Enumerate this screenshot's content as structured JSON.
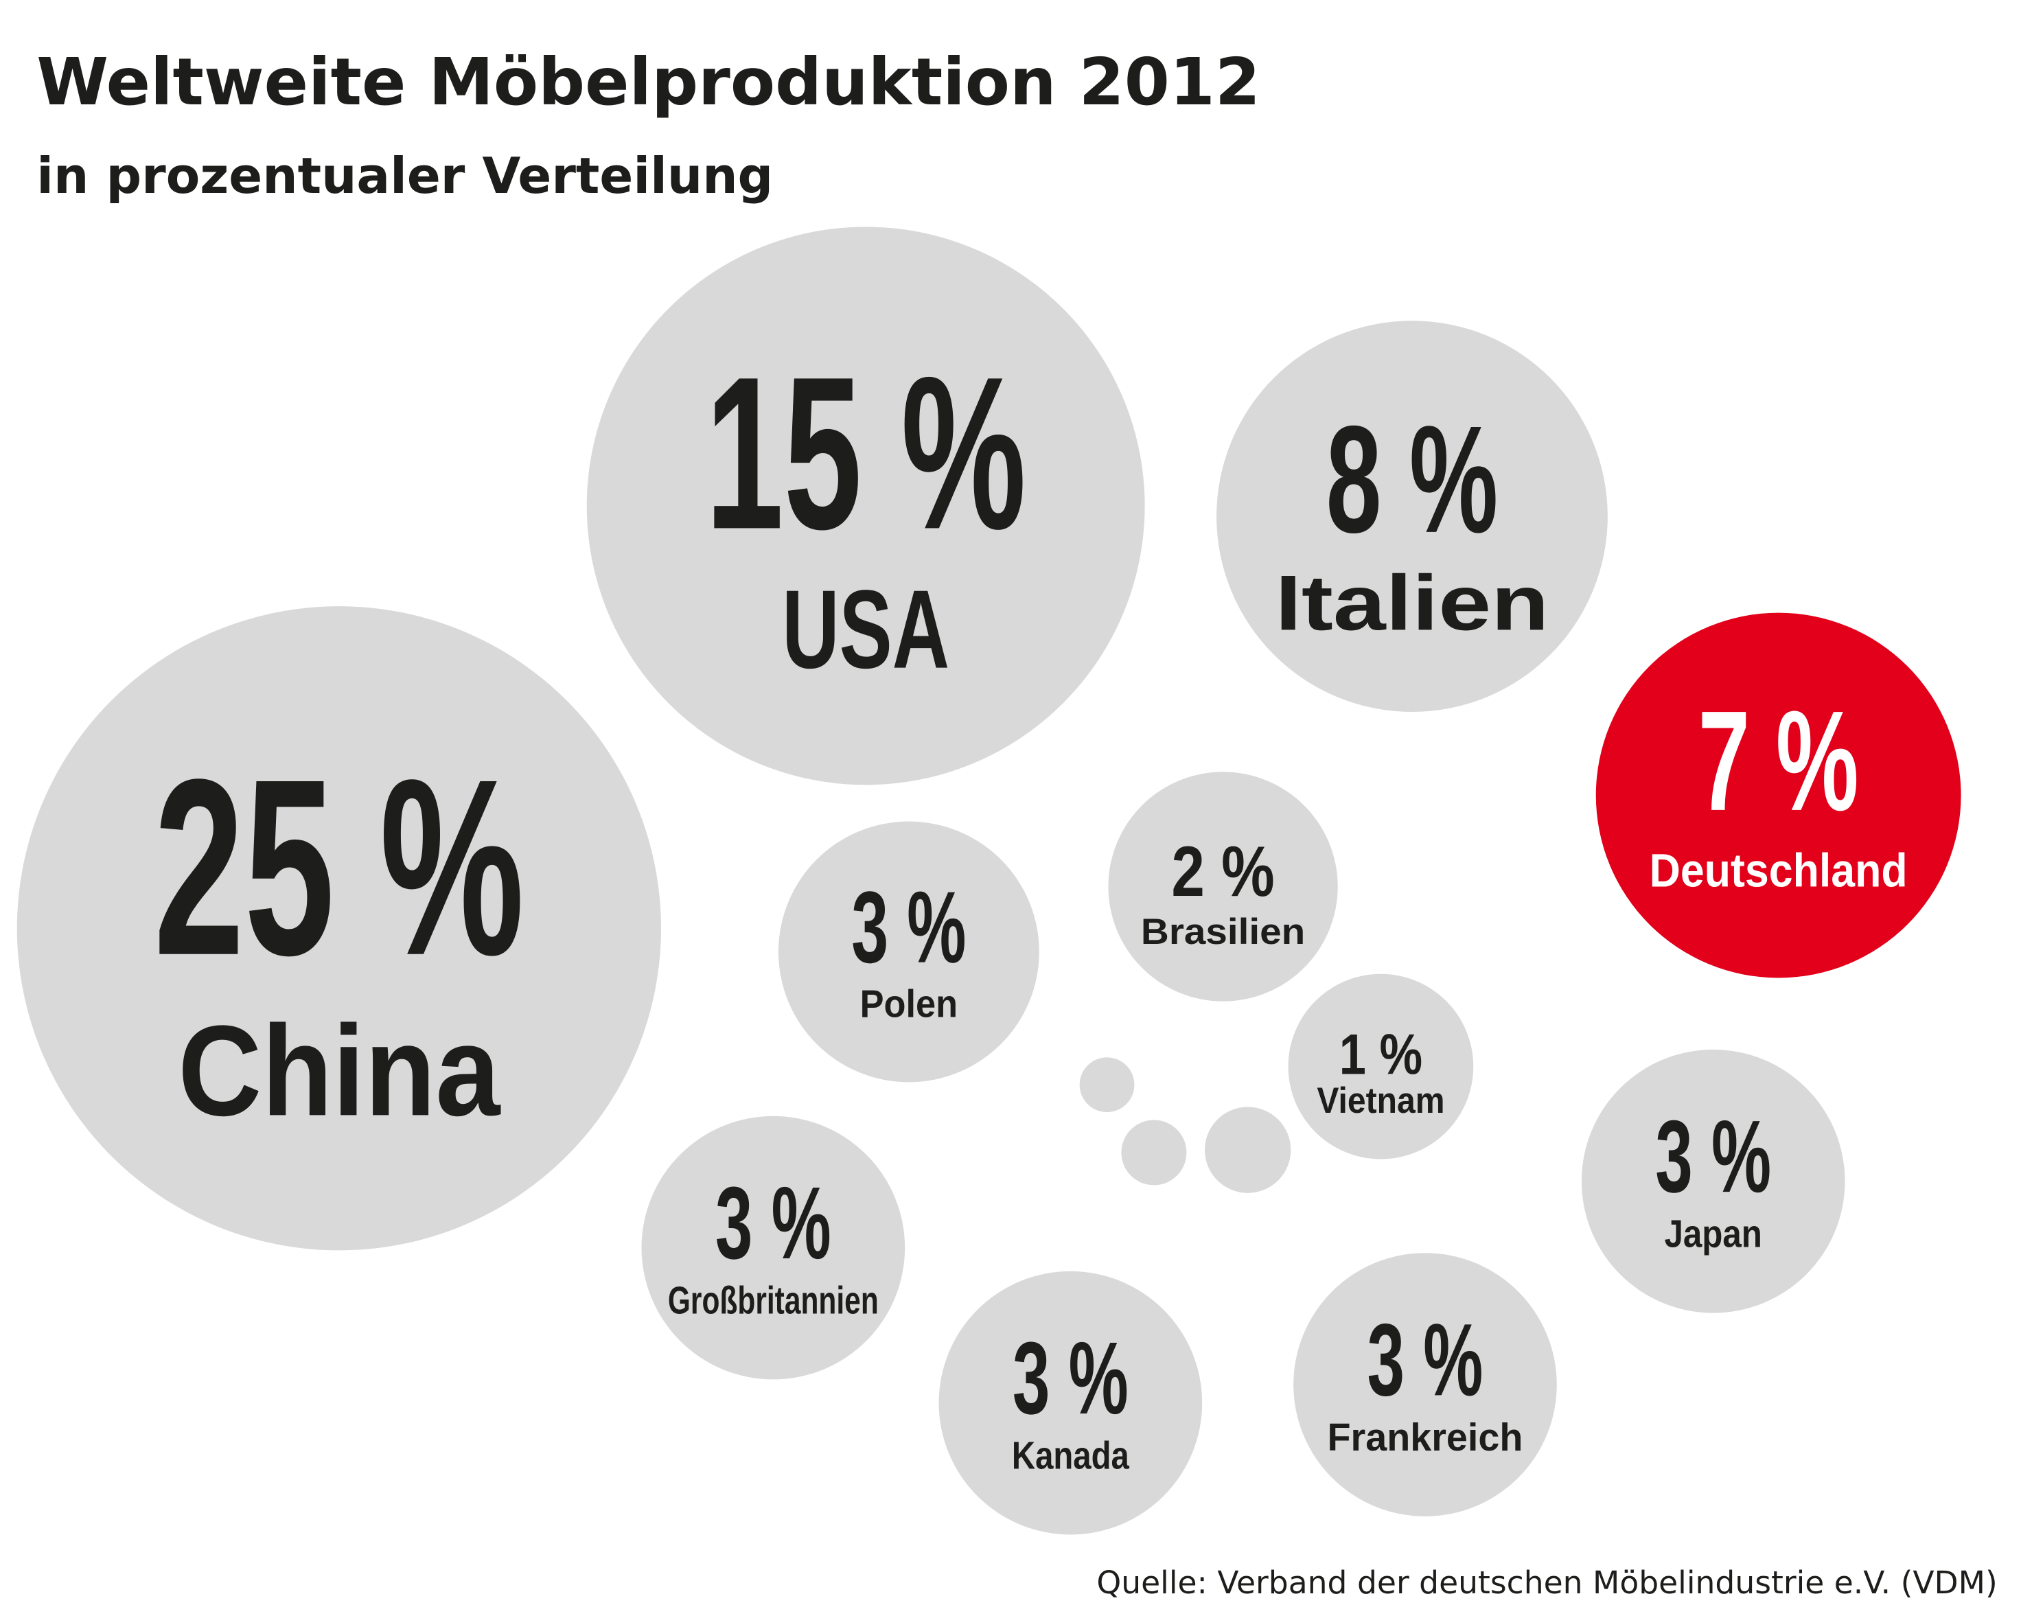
{
  "chart_data": {
    "type": "bubble",
    "title": "Weltweite Möbelproduktion 2012",
    "subtitle": "in prozentualer Verteilung",
    "source": "Quelle: Verband der deutschen Möbelindustrie e.V. (VDM)",
    "unit": "%",
    "colors": {
      "default": "#d9d9d9",
      "highlight": "#e2001a",
      "text_dark": "#1d1d1b",
      "text_light": "#ffffff"
    },
    "bubbles": [
      {
        "country": "China",
        "value": 25,
        "label": "25 %",
        "highlight": false
      },
      {
        "country": "USA",
        "value": 15,
        "label": "15 %",
        "highlight": false
      },
      {
        "country": "Italien",
        "value": 8,
        "label": "8 %",
        "highlight": false
      },
      {
        "country": "Deutschland",
        "value": 7,
        "label": "7 %",
        "highlight": true
      },
      {
        "country": "Polen",
        "value": 3,
        "label": "3 %",
        "highlight": false
      },
      {
        "country": "Brasilien",
        "value": 2,
        "label": "2 %",
        "highlight": false
      },
      {
        "country": "Vietnam",
        "value": 1,
        "label": "1 %",
        "highlight": false
      },
      {
        "country": "Japan",
        "value": 3,
        "label": "3 %",
        "highlight": false
      },
      {
        "country": "Großbritannien",
        "value": 3,
        "label": "3 %",
        "highlight": false
      },
      {
        "country": "Kanada",
        "value": 3,
        "label": "3 %",
        "highlight": false
      },
      {
        "country": "Frankreich",
        "value": 3,
        "label": "3 %",
        "highlight": false
      }
    ]
  }
}
